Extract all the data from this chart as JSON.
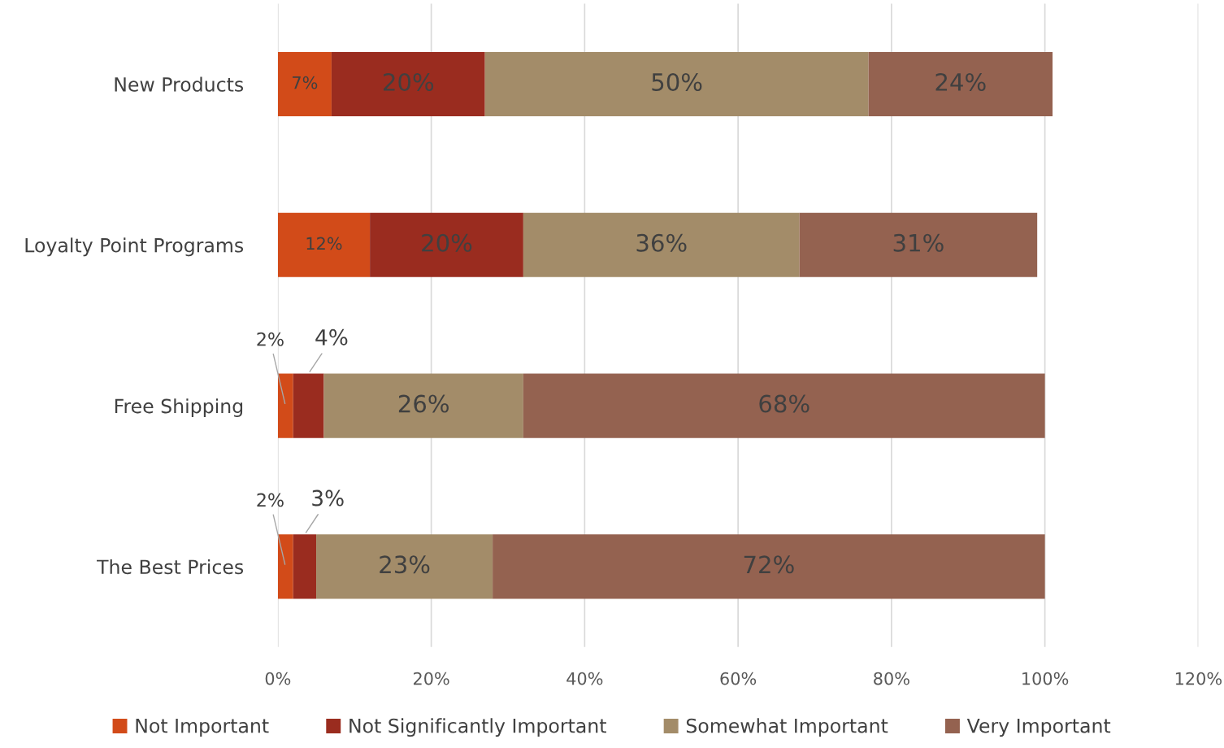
{
  "chart_data": {
    "type": "bar",
    "orientation": "horizontal",
    "stacked": true,
    "categories": [
      "New Products",
      "Loyalty Point Programs",
      "Free Shipping",
      "The Best Prices"
    ],
    "series": [
      {
        "name": "Not Important",
        "color": "#d24b19",
        "values": [
          7,
          12,
          2,
          2
        ],
        "value_labels": [
          "7%",
          "12%",
          "2%",
          "2%"
        ]
      },
      {
        "name": "Not Significantly Important",
        "color": "#9a2c1f",
        "values": [
          20,
          20,
          4,
          3
        ],
        "value_labels": [
          "20%",
          "20%",
          "4%",
          "3%"
        ]
      },
      {
        "name": "Somewhat Important",
        "color": "#a38c69",
        "values": [
          50,
          36,
          26,
          23
        ],
        "value_labels": [
          "50%",
          "36%",
          "26%",
          "23%"
        ]
      },
      {
        "name": "Very Important",
        "color": "#946250",
        "values": [
          24,
          31,
          68,
          72
        ],
        "value_labels": [
          "24%",
          "31%",
          "68%",
          "72%"
        ]
      }
    ],
    "xlim": [
      0,
      120
    ],
    "xticks": [
      {
        "value": 0,
        "label": "0%"
      },
      {
        "value": 20,
        "label": "20%"
      },
      {
        "value": 40,
        "label": "40%"
      },
      {
        "value": 60,
        "label": "60%"
      },
      {
        "value": 80,
        "label": "80%"
      },
      {
        "value": 100,
        "label": "100%"
      },
      {
        "value": 120,
        "label": "120%"
      }
    ],
    "grid": "x",
    "legend": "bottom"
  }
}
